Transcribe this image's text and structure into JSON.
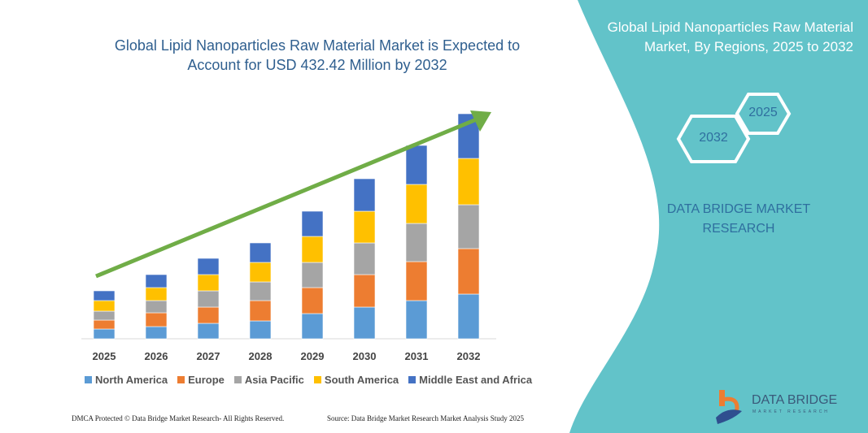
{
  "chart_data": {
    "type": "bar",
    "stacked": true,
    "title": "Global Lipid Nanoparticles Raw Material Market is Expected to Account for USD 432.42 Million by 2032",
    "categories": [
      "2025",
      "2026",
      "2027",
      "2028",
      "2029",
      "2030",
      "2031",
      "2032"
    ],
    "series": [
      {
        "name": "North America",
        "color": "#5b9bd5",
        "values": [
          12,
          15,
          19,
          22,
          31,
          39,
          47,
          55
        ]
      },
      {
        "name": "Europe",
        "color": "#ed7d31",
        "values": [
          11,
          17,
          20,
          25,
          32,
          40,
          48,
          56
        ]
      },
      {
        "name": "Asia Pacific",
        "color": "#a5a5a5",
        "values": [
          11,
          15,
          20,
          23,
          31,
          39,
          47,
          54
        ]
      },
      {
        "name": "South America",
        "color": "#ffc000",
        "values": [
          13,
          16,
          20,
          24,
          32,
          39,
          48,
          57
        ]
      },
      {
        "name": "Middle East and Africa",
        "color": "#4472c4",
        "values": [
          12,
          16,
          20,
          24,
          31,
          40,
          48,
          55
        ]
      }
    ],
    "legend": "bottom",
    "grid": false,
    "trend_arrow_color": "#70ad47"
  },
  "panel": {
    "title": "Global Lipid Nanoparticles Raw Material Market, By Regions, 2025 to 2032",
    "hex_start": "2025",
    "hex_end": "2032",
    "brand": "DATA BRIDGE MARKET RESEARCH",
    "color": "#62c3c9",
    "logo_text": "DATA BRIDGE",
    "logo_sub": "MARKET RESEARCH"
  },
  "footer": {
    "left": "DMCA Protected © Data Bridge Market Research- All Rights Reserved.",
    "right": "Source: Data Bridge Market Research Market Analysis Study 2025"
  }
}
